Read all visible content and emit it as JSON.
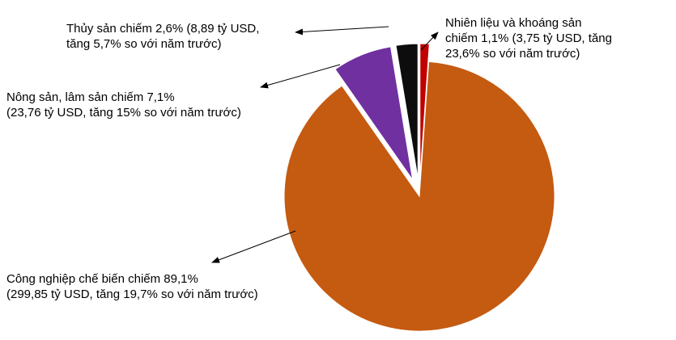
{
  "chart_data": {
    "type": "pie",
    "title": "",
    "slices": [
      {
        "label": "Công nghiệp chế biến",
        "value": 89.1,
        "color": "#C55A11",
        "text": [
          "Công nghiệp chế biến chiếm 89,1%",
          "(299,85 tỷ USD, tăng 19,7% so với năm trước)"
        ]
      },
      {
        "label": "Nông sản, lâm sản",
        "value": 7.1,
        "color": "#7030A0",
        "text": [
          "Nông sản, lâm sản chiếm 7,1%",
          "(23,76 tỷ USD, tăng 15% so với năm trước)"
        ]
      },
      {
        "label": "Thủy sản",
        "value": 2.6,
        "color": "#0D0D0D",
        "text": [
          "Thủy sản chiếm 2,6% (8,89 tỷ USD,",
          "tăng 5,7% so với năm trước)"
        ]
      },
      {
        "label": "Nhiên liệu và khoáng sản",
        "value": 1.1,
        "color": "#C00000",
        "text": [
          "Nhiên liệu và khoáng sản",
          "chiếm 1,1% (3,75 tỷ USD, tăng",
          "23,6% so với năm trước)"
        ]
      }
    ]
  }
}
